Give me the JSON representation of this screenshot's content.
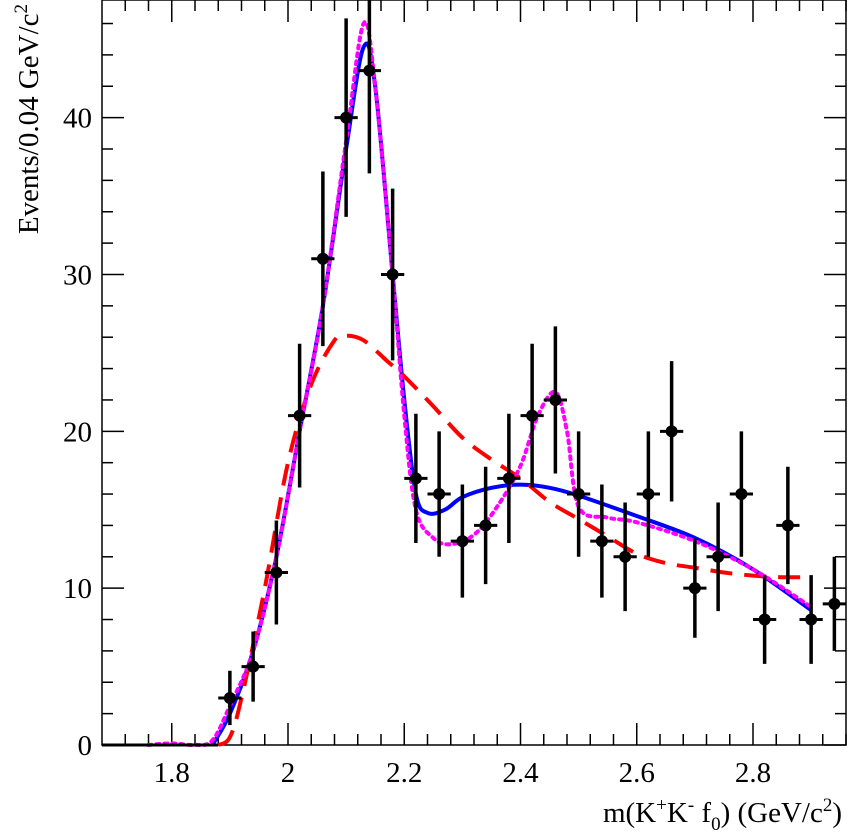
{
  "chart_data": {
    "type": "scatter",
    "title": "",
    "xlabel": {
      "pre": "m(K",
      "sup1": "+",
      "mid1": "K",
      "sup2": "-",
      "mid2": " f",
      "sub": "0",
      "mid3": ") (GeV/c",
      "sup3": "2",
      "post": ")"
    },
    "ylabel": {
      "pre": "Events/0.04 GeV/c",
      "sup": "2"
    },
    "xlim": [
      1.68,
      2.96
    ],
    "ylim": [
      0,
      47.5
    ],
    "x_ticks": [
      1.8,
      2.0,
      2.2,
      2.4,
      2.6,
      2.8
    ],
    "x_tick_labels": [
      "1.8",
      "2",
      "2.2",
      "2.4",
      "2.6",
      "2.8"
    ],
    "y_ticks": [
      0,
      10,
      20,
      30,
      40
    ],
    "y_tick_labels": [
      "0",
      "10",
      "20",
      "30",
      "40"
    ],
    "grid": false,
    "bin_half_width": 0.02,
    "series": [
      {
        "kind": "points",
        "color": "#000000",
        "x": [
          1.7,
          1.74,
          1.78,
          1.82,
          1.86,
          1.9,
          1.94,
          1.98,
          2.02,
          2.06,
          2.1,
          2.14,
          2.18,
          2.22,
          2.26,
          2.3,
          2.34,
          2.38,
          2.42,
          2.46,
          2.5,
          2.54,
          2.58,
          2.62,
          2.66,
          2.7,
          2.74,
          2.78,
          2.82,
          2.86,
          2.9,
          2.94
        ],
        "y": [
          0,
          0,
          0,
          0,
          0,
          3,
          5,
          11,
          21,
          31,
          40,
          43,
          30,
          17,
          16,
          13,
          14,
          17,
          21,
          22,
          16,
          13,
          12,
          16,
          20,
          10,
          12,
          16,
          8,
          14,
          8,
          9
        ]
      },
      {
        "kind": "line",
        "style": "solid",
        "color": "#0000ff",
        "x": [
          1.87,
          1.9,
          1.94,
          1.98,
          2.02,
          2.06,
          2.1,
          2.13,
          2.15,
          2.18,
          2.2,
          2.22,
          2.24,
          2.27,
          2.3,
          2.35,
          2.4,
          2.45,
          2.5,
          2.6,
          2.7,
          2.8,
          2.9
        ],
        "y": [
          0,
          2,
          6,
          12,
          20,
          28,
          38,
          44.5,
          42,
          30,
          22,
          16,
          14.8,
          15,
          15.8,
          16.4,
          16.6,
          16.4,
          15.9,
          14.6,
          13.2,
          11.2,
          8.6
        ]
      },
      {
        "kind": "line",
        "style": "dashed",
        "color": "#ff0000",
        "x": [
          1.88,
          1.9,
          1.92,
          1.96,
          2.0,
          2.04,
          2.08,
          2.1,
          2.13,
          2.17,
          2.2,
          2.25,
          2.3,
          2.35,
          2.4,
          2.45,
          2.5,
          2.55,
          2.6,
          2.65,
          2.7,
          2.75,
          2.8,
          2.85,
          2.9
        ],
        "y": [
          0,
          0.5,
          3,
          10,
          18,
          23,
          25.8,
          26.1,
          25.8,
          24.5,
          23.5,
          21.6,
          19.6,
          18.2,
          17,
          15.5,
          14.4,
          13.3,
          12.2,
          11.6,
          11.3,
          11.0,
          10.8,
          10.7,
          10.7
        ]
      },
      {
        "kind": "line",
        "style": "dotted",
        "color": "#ff00ff",
        "x": [
          1.76,
          1.8,
          1.84,
          1.87,
          1.9,
          1.94,
          1.98,
          2.02,
          2.06,
          2.1,
          2.13,
          2.15,
          2.18,
          2.2,
          2.22,
          2.25,
          2.28,
          2.32,
          2.36,
          2.4,
          2.43,
          2.46,
          2.48,
          2.5,
          2.55,
          2.6,
          2.7,
          2.8,
          2.9
        ],
        "y": [
          0,
          0.1,
          0,
          0.3,
          2.5,
          6,
          12,
          20,
          28,
          38.5,
          46,
          42,
          30,
          21,
          15,
          13.2,
          12.8,
          13.4,
          15.2,
          17.8,
          21,
          22.5,
          20,
          15.2,
          14.5,
          14.2,
          13,
          11.2,
          8.8
        ]
      }
    ]
  }
}
